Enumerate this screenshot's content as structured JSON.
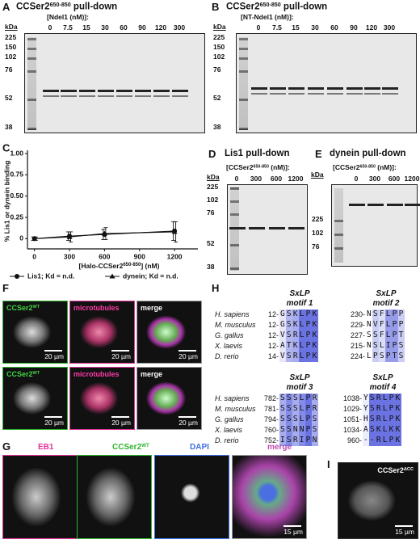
{
  "panel_a": {
    "label": "A",
    "title": [
      "CCSer2",
      "650-850",
      " pull-down"
    ],
    "concentration_label": [
      "[Ndel1 (nM)]:"
    ],
    "kda_label": "kDa",
    "lanes": [
      0,
      7.5,
      15,
      30,
      60,
      90,
      120,
      300
    ],
    "markers": [
      225,
      150,
      102,
      76,
      52,
      38
    ]
  },
  "panel_b": {
    "label": "B",
    "title": [
      "CCSer2",
      "650-850",
      " pull-down"
    ],
    "concentration_label": [
      "[NT-Ndel1 (nM)]:"
    ],
    "kda_label": "kDa",
    "lanes": [
      0,
      7.5,
      15,
      30,
      60,
      90,
      120,
      300
    ],
    "markers": [
      225,
      150,
      102,
      76,
      52,
      38
    ]
  },
  "chart_data": {
    "type": "line",
    "panel_label": "C",
    "y_label": "% Lis1 or dynein binding",
    "x_label": [
      "[Halo-CCSer2",
      "650-850",
      "] (nM)"
    ],
    "x": [
      0,
      300,
      600,
      1200
    ],
    "series": [
      {
        "name": "Lis1; Kd = n.d.",
        "marker": "circle",
        "color": "#111111",
        "values": [
          0,
          0.03,
          0.05,
          0.09
        ],
        "errors": [
          0.02,
          0.05,
          0.06,
          0.11
        ]
      },
      {
        "name": "dynein; Kd = n.d.",
        "marker": "triangle",
        "color": "#111111",
        "values": [
          0,
          0.02,
          0.06,
          0.08
        ],
        "errors": [
          0.02,
          0.06,
          0.07,
          0.12
        ]
      }
    ],
    "xlim": [
      -60,
      1400
    ],
    "ylim": [
      -0.12,
      1.0
    ],
    "xticks": [
      0,
      300,
      600,
      900,
      1200
    ],
    "yticks": [
      0,
      0.25,
      {
        "value": 0.5,
        "label": "0.50"
      },
      0.75,
      {
        "value": 1,
        "label": "1.00"
      }
    ],
    "legend": "bottom"
  },
  "panel_d": {
    "label": "D",
    "title": [
      "Lis1 pull-down"
    ],
    "concentration_label": [
      "[CCSer2",
      "650-850",
      " (nM)]:"
    ],
    "kda_label": "kDa",
    "lanes": [
      0,
      300,
      600,
      1200
    ],
    "markers": [
      225,
      102,
      76,
      52,
      38
    ]
  },
  "panel_e": {
    "label": "E",
    "title": [
      "dynein pull-down"
    ],
    "concentration_label": [
      "[CCSer2",
      "650-850",
      " (nM)]:"
    ],
    "kda_label": "kDa",
    "lanes": [
      0,
      300,
      600,
      1200
    ],
    "markers": [
      225,
      102,
      76
    ]
  },
  "panel_f": {
    "label": "F",
    "rows": [
      {
        "images": [
          {
            "name": [
              "CCSer2",
              "WT"
            ],
            "scale": "20 µm"
          },
          {
            "name": [
              "microtubules"
            ],
            "scale": "20 µm"
          },
          {
            "name": [
              "merge"
            ],
            "scale": "20 µm"
          }
        ]
      },
      {
        "images": [
          {
            "name": [
              "CCSer2",
              "WT"
            ],
            "scale": "20 µm"
          },
          {
            "name": [
              "microtubules"
            ],
            "scale": "20 µm"
          },
          {
            "name": [
              "merge"
            ],
            "scale": "20 µm"
          }
        ]
      }
    ]
  },
  "panel_g": {
    "label": "G",
    "images": [
      {
        "name": [
          "EB1"
        ]
      },
      {
        "name": [
          "CCSer2",
          "WT"
        ]
      },
      {
        "name": [
          "DAPI"
        ]
      },
      {
        "name": [
          "merge"
        ],
        "scale": "15 µm"
      }
    ]
  },
  "panel_h": {
    "label": "H",
    "species": [
      "H. sapiens",
      "M. musculus",
      "G. gallus",
      "X. laevis",
      "D. rerio"
    ],
    "blocks": [
      {
        "motifs": [
          {
            "title": "SxLP",
            "subtitle": "motif 1",
            "rows": [
              {
                "start": "12-",
                "seq": "GSKLPK"
              },
              {
                "start": "12-",
                "seq": "GSKLPK"
              },
              {
                "start": "12-",
                "seq": "VSRLPK"
              },
              {
                "start": "12-",
                "seq": "ATKLPK"
              },
              {
                "start": "14-",
                "seq": "VSRLPK"
              }
            ]
          },
          {
            "title": "SxLP",
            "subtitle": "motif 2",
            "rows": [
              {
                "start": "230-",
                "seq": "NSFLPP"
              },
              {
                "start": "229-",
                "seq": "NVFLPP"
              },
              {
                "start": "227-",
                "seq": "SSFLPT"
              },
              {
                "start": "215-",
                "seq": "NSLIPS"
              },
              {
                "start": "224-",
                "seq": "LPSPTS"
              }
            ]
          }
        ]
      },
      {
        "motifs": [
          {
            "title": "SxLP",
            "subtitle": "motif 3",
            "rows": [
              {
                "start": "782-",
                "seq": "SSSLPR"
              },
              {
                "start": "781-",
                "seq": "SSSLPR"
              },
              {
                "start": "794-",
                "seq": "SSSLPS"
              },
              {
                "start": "760-",
                "seq": "SSNNPS"
              },
              {
                "start": "752-",
                "seq": "ISRIPN"
              }
            ]
          },
          {
            "title": "SxLP",
            "subtitle": "motif 4",
            "rows": [
              {
                "start": "1038-",
                "seq": "YSRLPK"
              },
              {
                "start": "1029-",
                "seq": "YSRLPK"
              },
              {
                "start": "1051-",
                "seq": "HSRLPK"
              },
              {
                "start": "1034-",
                "seq": "ASKLKK"
              },
              {
                "start": "960-",
                "seq": "--RLPK"
              }
            ]
          }
        ]
      }
    ]
  },
  "panel_i": {
    "label": "I",
    "name": [
      "CCSer2",
      "ΔCC"
    ],
    "scale": "15 µm"
  }
}
